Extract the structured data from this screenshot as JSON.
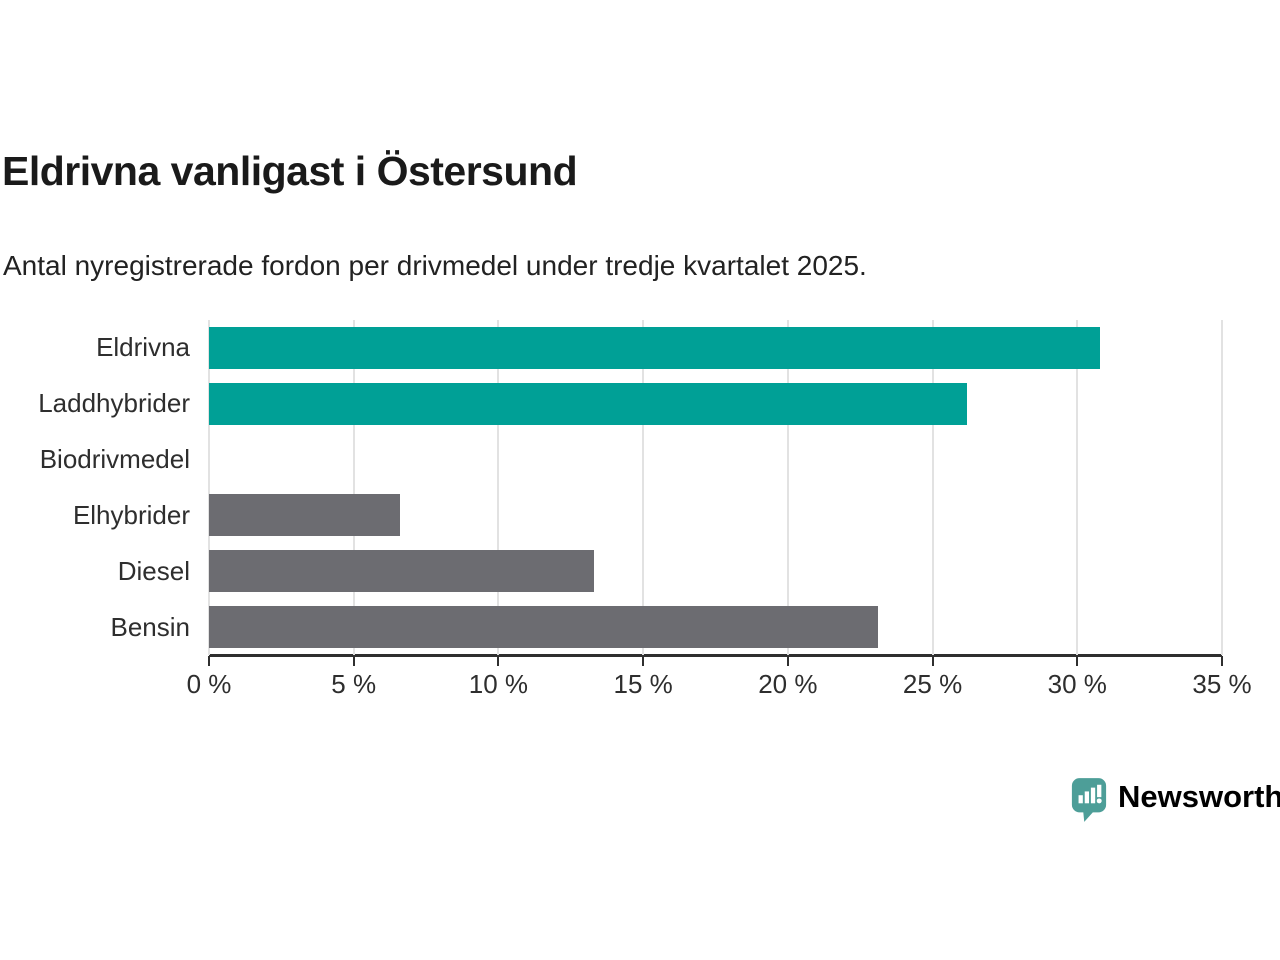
{
  "chart_data": {
    "type": "bar",
    "orientation": "horizontal",
    "title": "Eldrivna vanligast i Östersund",
    "subtitle": "Antal nyregistrerade fordon per drivmedel under tredje kvartalet 2025.",
    "categories": [
      "Eldrivna",
      "Laddhybrider",
      "Biodrivmedel",
      "Elhybrider",
      "Diesel",
      "Bensin"
    ],
    "values": [
      30.8,
      26.2,
      0,
      6.6,
      13.3,
      23.1
    ],
    "bar_colors": [
      "#00A096",
      "#00A096",
      "#00A096",
      "#6C6C71",
      "#6C6C71",
      "#6C6C71"
    ],
    "xlim": [
      0,
      35
    ],
    "x_tick_step": 5,
    "x_tick_labels": [
      "0 %",
      "5 %",
      "10 %",
      "15 %",
      "20 %",
      "25 %",
      "30 %",
      "35 %"
    ],
    "xlabel": "",
    "ylabel": "",
    "grid": "vertical",
    "legend": "none"
  },
  "colors": {
    "highlight": "#00A096",
    "default_bar": "#6C6C71",
    "axis": "#2F2F2F",
    "grid": "#E2E2E2",
    "title_text": "#1A1A1A",
    "body_text": "#2E2E2E",
    "logo": "#4D9E98"
  },
  "footer": {
    "logo_text": "Newsworthy"
  }
}
